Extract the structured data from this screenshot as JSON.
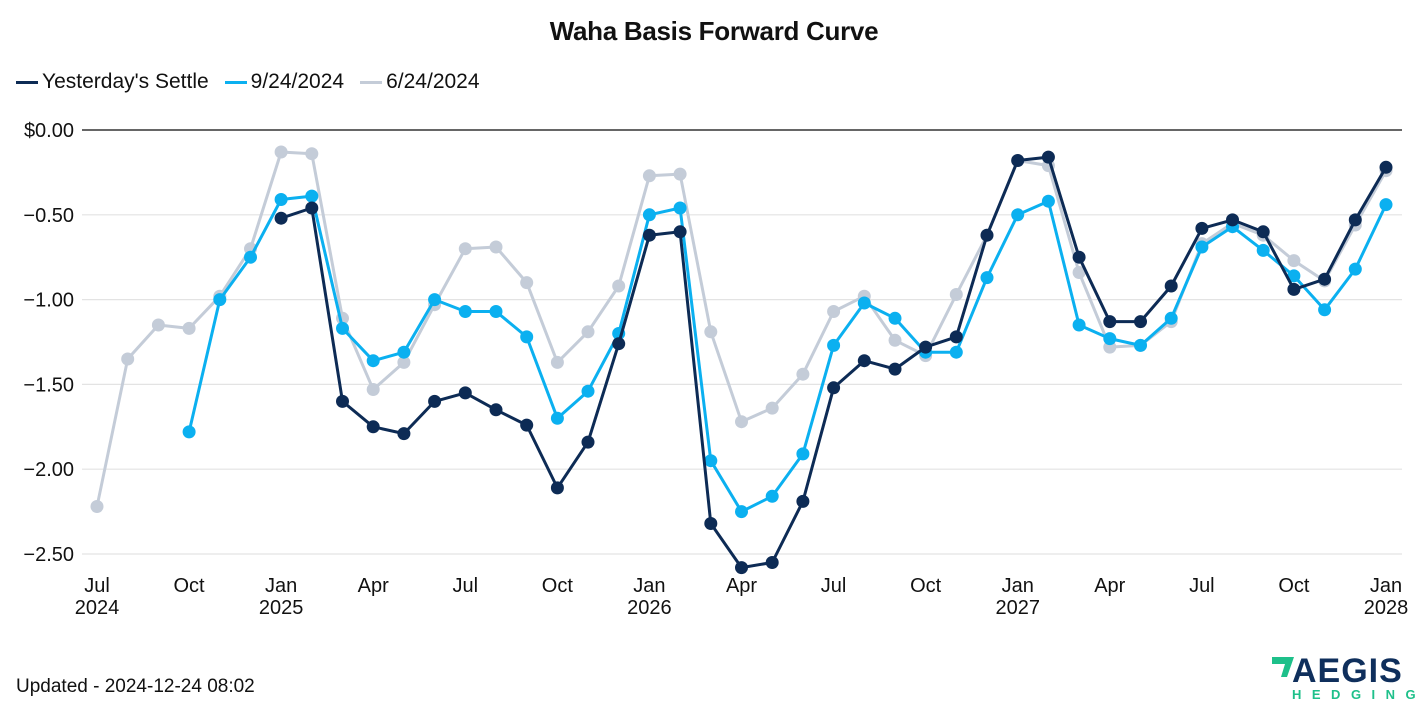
{
  "chart_data": {
    "type": "line",
    "title": "Waha Basis Forward Curve",
    "xlabel": "",
    "ylabel": "",
    "ylim": [
      -2.6,
      0.0
    ],
    "y_ticks": [
      {
        "value": 0.0,
        "label": "$0.00"
      },
      {
        "value": -0.5,
        "label": "−0.50"
      },
      {
        "value": -1.0,
        "label": "−1.00"
      },
      {
        "value": -1.5,
        "label": "−1.50"
      },
      {
        "value": -2.0,
        "label": "−2.00"
      },
      {
        "value": -2.5,
        "label": "−2.50"
      }
    ],
    "x_ticks": [
      {
        "month_index": 0,
        "label": "Jul",
        "year": "2024"
      },
      {
        "month_index": 3,
        "label": "Oct",
        "year": ""
      },
      {
        "month_index": 6,
        "label": "Jan",
        "year": "2025"
      },
      {
        "month_index": 9,
        "label": "Apr",
        "year": ""
      },
      {
        "month_index": 12,
        "label": "Jul",
        "year": ""
      },
      {
        "month_index": 15,
        "label": "Oct",
        "year": ""
      },
      {
        "month_index": 18,
        "label": "Jan",
        "year": "2026"
      },
      {
        "month_index": 21,
        "label": "Apr",
        "year": ""
      },
      {
        "month_index": 24,
        "label": "Jul",
        "year": ""
      },
      {
        "month_index": 27,
        "label": "Oct",
        "year": ""
      },
      {
        "month_index": 30,
        "label": "Jan",
        "year": "2027"
      },
      {
        "month_index": 33,
        "label": "Apr",
        "year": ""
      },
      {
        "month_index": 36,
        "label": "Jul",
        "year": ""
      },
      {
        "month_index": 39,
        "label": "Oct",
        "year": ""
      },
      {
        "month_index": 42,
        "label": "Jan",
        "year": "2028"
      }
    ],
    "x_start": "2024-07",
    "x_end": "2028-01",
    "grid": true,
    "legend_position": "top-left",
    "series": [
      {
        "name": "Yesterday's Settle",
        "color": "#0d2b55",
        "start_index": 6,
        "values": [
          -0.52,
          -0.46,
          -1.6,
          -1.75,
          -1.79,
          -1.6,
          -1.55,
          -1.65,
          -1.74,
          -2.11,
          -1.84,
          -1.26,
          -0.62,
          -0.6,
          -2.32,
          -2.58,
          -2.55,
          -2.19,
          -1.52,
          -1.36,
          -1.41,
          -1.28,
          -1.22,
          -0.62,
          -0.18,
          -0.16,
          -0.75,
          -1.13,
          -1.13,
          -0.92,
          -0.58,
          -0.53,
          -0.6,
          -0.94,
          -0.88,
          -0.53,
          -0.22
        ]
      },
      {
        "name": "9/24/2024",
        "color": "#0bb0f0",
        "start_index": 3,
        "values": [
          -1.78,
          -1.0,
          -0.75,
          -0.41,
          -0.39,
          -1.17,
          -1.36,
          -1.31,
          -1.0,
          -1.07,
          -1.07,
          -1.22,
          -1.7,
          -1.54,
          -1.2,
          -0.5,
          -0.46,
          -1.95,
          -2.25,
          -2.16,
          -1.91,
          -1.27,
          -1.02,
          -1.11,
          -1.31,
          -1.31,
          -0.87,
          -0.5,
          -0.42,
          -1.15,
          -1.23,
          -1.27,
          -1.11,
          -0.69,
          -0.57,
          -0.71,
          -0.86,
          -1.06,
          -0.82,
          -0.44
        ]
      },
      {
        "name": "6/24/2024",
        "color": "#c4ccd8",
        "start_index": 0,
        "values": [
          -2.22,
          -1.35,
          -1.15,
          -1.17,
          -0.98,
          -0.7,
          -0.13,
          -0.14,
          -1.11,
          -1.53,
          -1.37,
          -1.03,
          -0.7,
          -0.69,
          -0.9,
          -1.37,
          -1.19,
          -0.92,
          -0.27,
          -0.26,
          -1.19,
          -1.72,
          -1.64,
          -1.44,
          -1.07,
          -0.98,
          -1.24,
          -1.33,
          -0.97,
          -0.62,
          -0.18,
          -0.21,
          -0.84,
          -1.28,
          -1.27,
          -1.13,
          -0.67,
          -0.55,
          -0.62,
          -0.77,
          -0.89,
          -0.56,
          -0.24
        ]
      }
    ]
  },
  "legend": [
    {
      "label": "Yesterday's Settle",
      "color": "#0d2b55"
    },
    {
      "label": "9/24/2024",
      "color": "#0bb0f0"
    },
    {
      "label": "6/24/2024",
      "color": "#c4ccd8"
    }
  ],
  "footer": {
    "updated": "Updated - 2024-12-24 08:02"
  },
  "logo": {
    "main": "AEGIS",
    "sub": "HEDGING",
    "main_color": "#0f2f5c",
    "accent_color": "#1ec08a"
  }
}
